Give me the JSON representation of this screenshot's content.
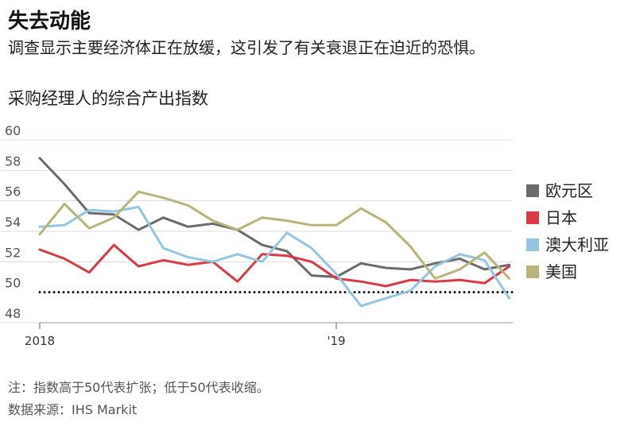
{
  "header": {
    "title": "失去动能",
    "subtitle": "调查显示主要经济体正在放缓，这引发了有关衰退正在迫近的恐惧。"
  },
  "chart_title": "采购经理人的综合产出指数",
  "footer": {
    "note": "注：指数高于50代表扩张；低于50代表收缩。",
    "source": "数据来源：IHS Markit"
  },
  "chart_data": {
    "type": "line",
    "title": "采购经理人的综合产出指数",
    "ylim": [
      48,
      60
    ],
    "yticks": [
      48,
      50,
      52,
      54,
      56,
      58,
      60
    ],
    "x_labels": [
      {
        "label": "2018",
        "index": 0
      },
      {
        "label": "'19",
        "index": 12
      }
    ],
    "reference_line": {
      "value": 50,
      "style": "dotted"
    },
    "legend_position": "right",
    "grid": true,
    "series": [
      {
        "name": "欧元区",
        "color": "#6b6b6b",
        "values": [
          58.8,
          57.1,
          55.2,
          55.1,
          54.1,
          54.9,
          54.3,
          54.5,
          54.1,
          53.1,
          52.7,
          51.1,
          51.0,
          51.9,
          51.6,
          51.5,
          51.9,
          52.2,
          51.5,
          51.8
        ]
      },
      {
        "name": "日本",
        "color": "#d93a45",
        "values": [
          52.8,
          52.2,
          51.3,
          53.1,
          51.7,
          52.1,
          51.8,
          52.0,
          50.7,
          52.5,
          52.4,
          52.0,
          50.9,
          50.7,
          50.4,
          50.8,
          50.7,
          50.8,
          50.6,
          51.7
        ]
      },
      {
        "name": "澳大利亚",
        "color": "#93c6e0",
        "values": [
          54.3,
          54.4,
          55.4,
          55.3,
          55.6,
          52.9,
          52.3,
          52.0,
          52.5,
          52.0,
          53.9,
          52.9,
          51.2,
          49.1,
          49.6,
          50.1,
          51.7,
          52.5,
          52.1,
          49.6
        ]
      },
      {
        "name": "美国",
        "color": "#b9b47a",
        "values": [
          53.8,
          55.8,
          54.2,
          54.9,
          56.6,
          56.2,
          55.7,
          54.7,
          54.1,
          54.9,
          54.7,
          54.4,
          54.4,
          55.5,
          54.6,
          53.0,
          50.9,
          51.5,
          52.6,
          50.9
        ]
      }
    ]
  }
}
